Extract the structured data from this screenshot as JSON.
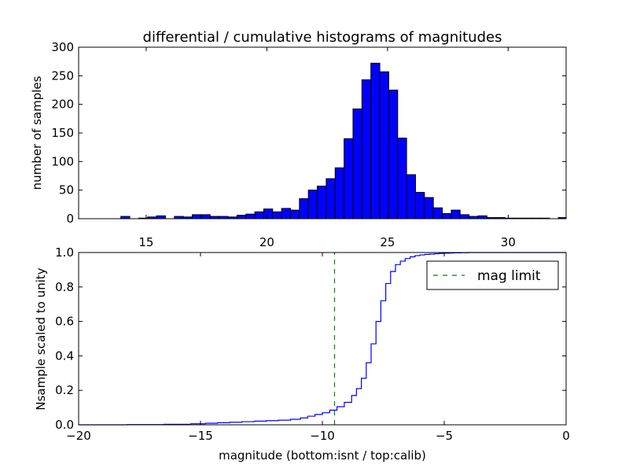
{
  "chart_data": [
    {
      "type": "bar",
      "title": "differential / cumulative histograms of magnitudes",
      "xlabel": "",
      "ylabel": "number of samples",
      "xlim": [
        12.2,
        32.4
      ],
      "ylim": [
        0,
        300
      ],
      "xticks": [
        "15",
        "20",
        "25",
        "30"
      ],
      "yticks": [
        "0",
        "50",
        "100",
        "150",
        "200",
        "250",
        "300"
      ],
      "bin_width": 0.37,
      "bin_starts": [
        13.95,
        14.32,
        14.69,
        15.06,
        15.43,
        15.8,
        16.17,
        16.54,
        16.91,
        17.28,
        17.65,
        18.02,
        18.39,
        18.76,
        19.13,
        19.5,
        19.87,
        20.24,
        20.61,
        20.98,
        21.35,
        21.72,
        22.09,
        22.46,
        22.83,
        23.2,
        23.57,
        23.94,
        24.31,
        24.68,
        25.05,
        25.42,
        25.79,
        26.16,
        26.53,
        26.9,
        27.27,
        27.64,
        28.01,
        28.38,
        28.75,
        29.12,
        29.49,
        29.86,
        30.23,
        30.6,
        30.97,
        31.34,
        31.71,
        32.08
      ],
      "values": [
        4,
        0,
        1,
        3,
        5,
        0,
        4,
        3,
        7,
        7,
        4,
        4,
        3,
        6,
        8,
        12,
        17,
        12,
        18,
        15,
        35,
        50,
        57,
        70,
        89,
        140,
        192,
        243,
        272,
        257,
        225,
        141,
        77,
        46,
        37,
        19,
        9,
        15,
        7,
        4,
        5,
        2,
        2,
        1,
        1,
        1,
        1,
        1,
        0,
        2
      ],
      "bar_color": "#0000ff"
    },
    {
      "type": "line",
      "xlabel": "magnitude (bottom:isnt / top:calib)",
      "ylabel": "Nsample scaled to unity",
      "xlim": [
        -20,
        0
      ],
      "ylim": [
        0,
        1
      ],
      "xticks": [
        "−20",
        "−15",
        "−10",
        "−5",
        "0"
      ],
      "yticks": [
        "0.0",
        "0.2",
        "0.4",
        "0.6",
        "0.8",
        "1.0"
      ],
      "series": [
        {
          "style": "step",
          "color": "#0000ff",
          "x": [
            -20.0,
            -18.0,
            -16.5,
            -15.4,
            -14.8,
            -14.3,
            -13.8,
            -13.3,
            -12.8,
            -12.3,
            -11.8,
            -11.3,
            -10.9,
            -10.6,
            -10.3,
            -10.0,
            -9.7,
            -9.4,
            -9.1,
            -8.8,
            -8.6,
            -8.4,
            -8.2,
            -8.0,
            -7.8,
            -7.6,
            -7.4,
            -7.2,
            -7.0,
            -6.8,
            -6.6,
            -6.4,
            -6.2,
            -6.0,
            -5.8,
            -5.6,
            -5.4,
            -5.2,
            -5.0,
            -4.8,
            -4.6,
            -4.3,
            -4.0,
            -3.5,
            -3.0,
            -2.0,
            -1.0,
            -0.1,
            0.0
          ],
          "y": [
            0.0,
            0.001,
            0.003,
            0.006,
            0.009,
            0.012,
            0.015,
            0.018,
            0.021,
            0.024,
            0.027,
            0.032,
            0.04,
            0.05,
            0.06,
            0.07,
            0.085,
            0.105,
            0.13,
            0.17,
            0.21,
            0.27,
            0.36,
            0.47,
            0.6,
            0.72,
            0.82,
            0.89,
            0.93,
            0.95,
            0.965,
            0.975,
            0.982,
            0.986,
            0.989,
            0.991,
            0.993,
            0.995,
            0.996,
            0.997,
            0.998,
            0.999,
            1.0,
            1.0,
            1.0,
            1.0,
            1.0,
            1.0,
            1.0
          ]
        },
        {
          "name": "mag limit",
          "style": "dashed-vertical",
          "color": "#008000",
          "x": [
            -9.5,
            -9.5
          ],
          "y": [
            0,
            1
          ]
        }
      ],
      "legend": {
        "position": "top-right",
        "entries": [
          "mag limit"
        ]
      }
    }
  ]
}
